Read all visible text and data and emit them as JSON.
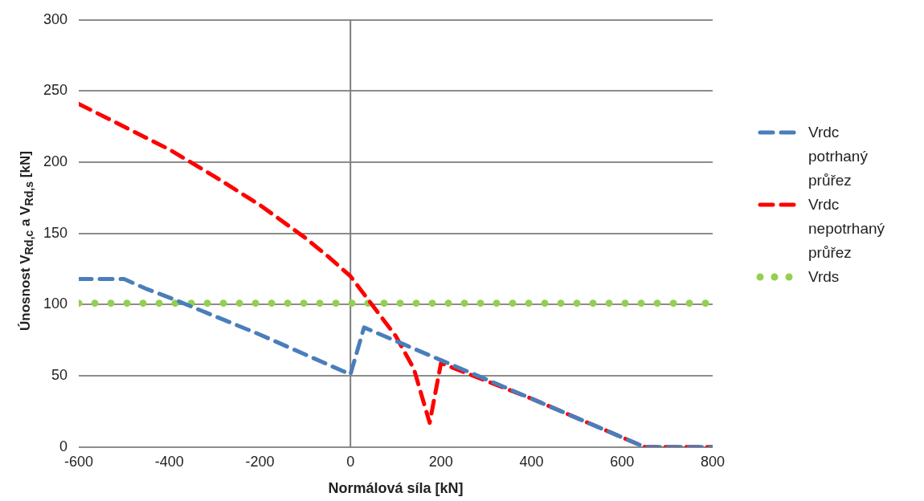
{
  "chart_data": {
    "type": "line",
    "xlabel": "Normálová síla [kN]",
    "ylabel": "Únosnost V$_{Rd,c}$ a V$_{Rd,s}$ [kN]",
    "xlim": [
      -600,
      800
    ],
    "xticks": [
      -600,
      -400,
      -200,
      0,
      200,
      400,
      600,
      800
    ],
    "ylim": [
      0,
      300
    ],
    "yticks": [
      0,
      50,
      100,
      150,
      200,
      250,
      300
    ],
    "grid": "y",
    "legend": "right",
    "marker": "none",
    "ref_lines": [
      {
        "axis": "x",
        "value": 0,
        "color": "#7f7f7f"
      }
    ],
    "series": [
      {
        "name": "Vrdc potrhaný průřez",
        "color": "#4a7ebb",
        "line_style": "dashed",
        "x": [
          -600,
          -500,
          -450,
          -400,
          -300,
          -200,
          -100,
          0,
          30,
          200,
          400,
          650,
          800
        ],
        "values": [
          118,
          118,
          111,
          105,
          92,
          79,
          65,
          51,
          84,
          61,
          34,
          0,
          0
        ]
      },
      {
        "name": "Vrdc nepotrhaný průřez",
        "color": "#ff0000",
        "line_style": "dashed",
        "x": [
          -600,
          -500,
          -400,
          -300,
          -200,
          -100,
          -50,
          0,
          50,
          100,
          140,
          175,
          200,
          400,
          650,
          800
        ],
        "values": [
          241,
          225,
          209,
          190,
          170,
          147,
          134,
          120,
          99,
          78,
          55,
          17,
          59,
          34,
          0,
          0
        ]
      },
      {
        "name": "Vrds",
        "color": "#92d050",
        "line_style": "dotted",
        "x": [
          -600,
          800
        ],
        "values": [
          101,
          101
        ]
      }
    ]
  }
}
